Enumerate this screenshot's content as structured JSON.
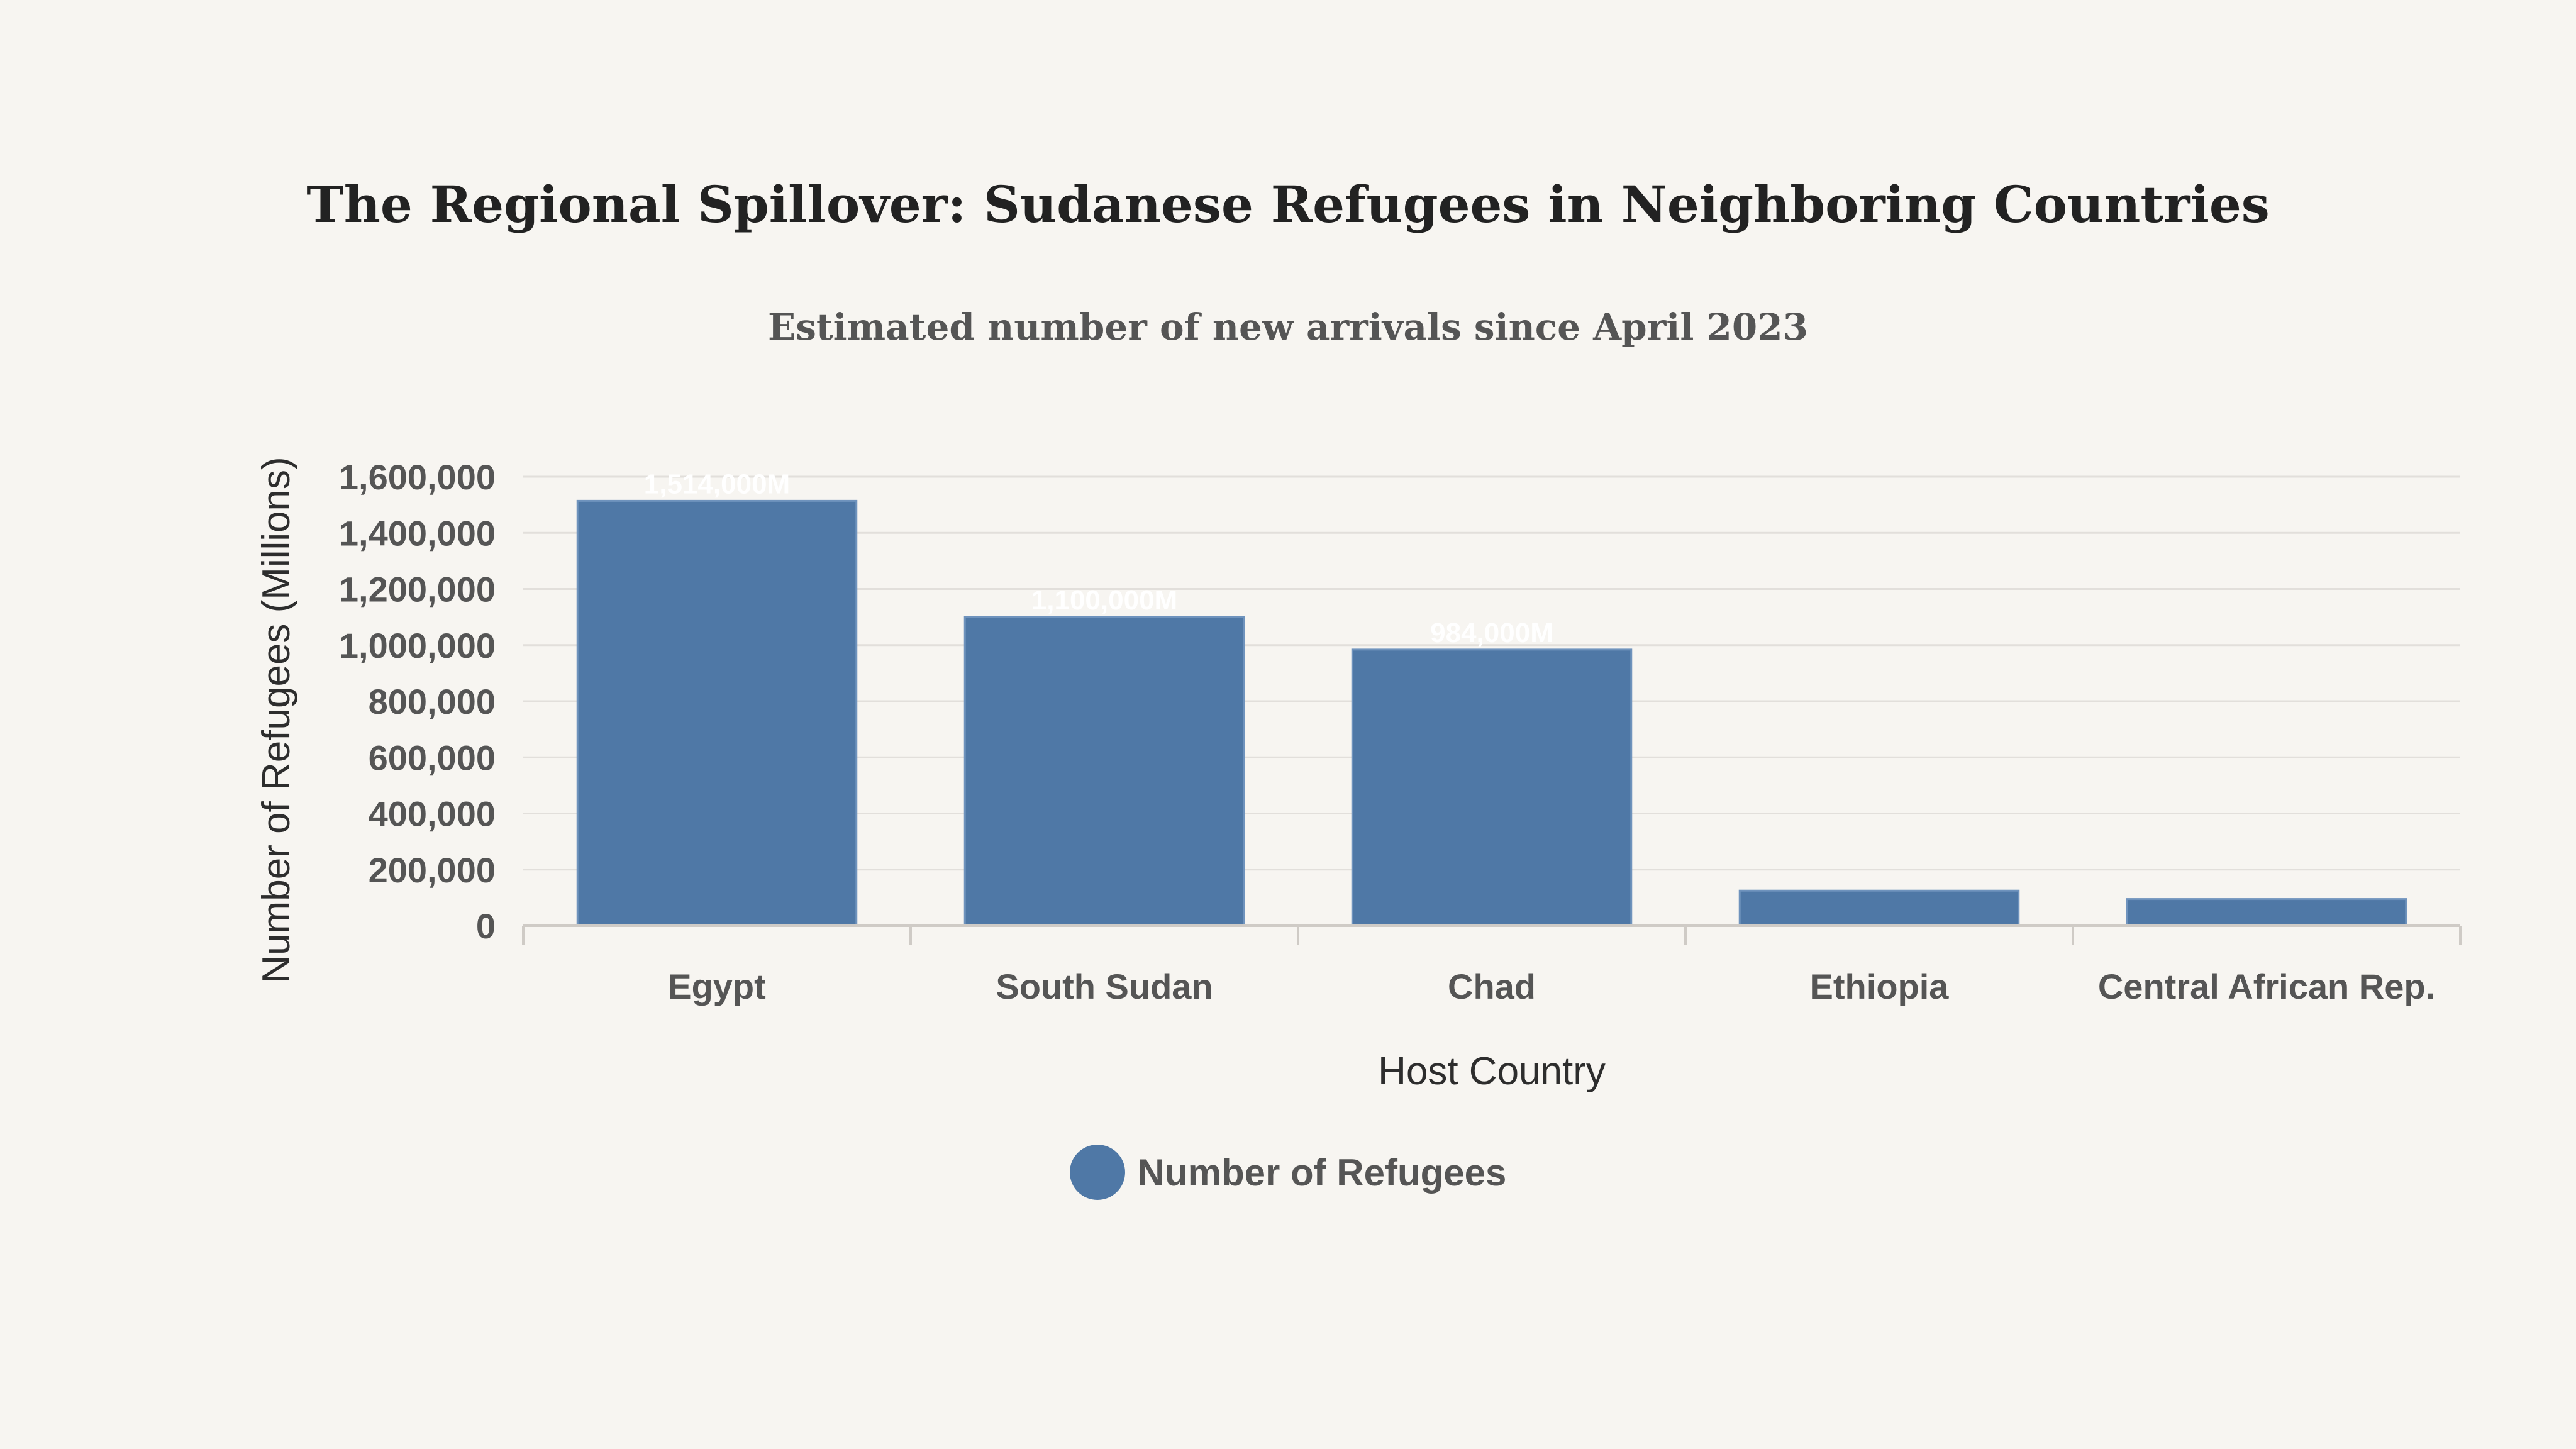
{
  "colors": {
    "bar": "#4f78a6",
    "grid": "#e2dfdb",
    "axis": "#cfcbc6"
  },
  "chart_data": {
    "type": "bar",
    "title": "The Regional Spillover: Sudanese Refugees in Neighboring Countries",
    "subtitle": "Estimated number of new arrivals since April 2023",
    "xlabel": "Host Country",
    "ylabel": "Number of Refugees (Millions)",
    "categories": [
      "Egypt",
      "South Sudan",
      "Chad",
      "Ethiopia",
      "Central African Rep."
    ],
    "series": [
      {
        "name": "Number of Refugees",
        "values": [
          1514000,
          1100000,
          984000,
          125000,
          95000
        ],
        "labels": [
          "1,514,000M",
          "1,100,000M",
          "984,000M",
          "",
          ""
        ]
      }
    ],
    "ylim": [
      0,
      1600000
    ],
    "yticks": [
      0,
      200000,
      400000,
      600000,
      800000,
      1000000,
      1200000,
      1400000,
      1600000
    ],
    "ytick_labels": [
      "0",
      "200,000",
      "400,000",
      "600,000",
      "800,000",
      "1,000,000",
      "1,200,000",
      "1,400,000",
      "1,600,000"
    ],
    "grid": true,
    "legend": "bottom-center"
  }
}
